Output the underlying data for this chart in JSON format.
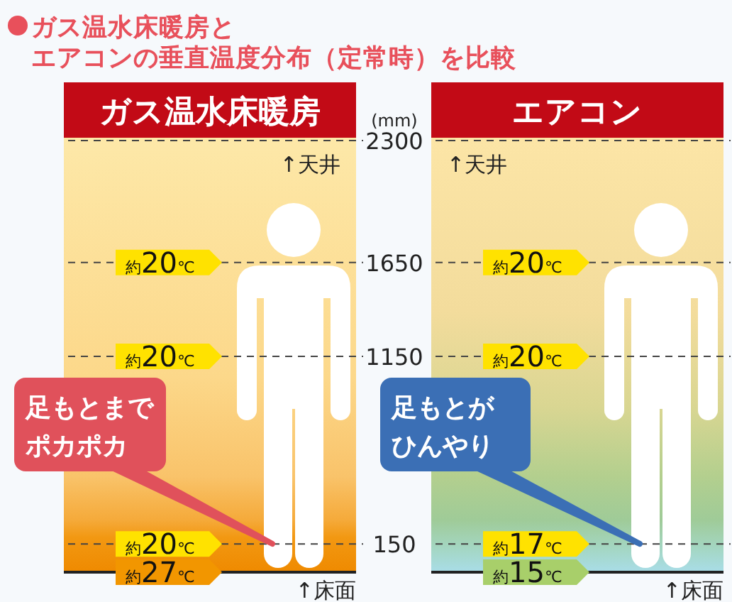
{
  "chart_data": [
    {
      "type": "scatter",
      "title": "ガス温水床暖房とエアコンの垂直温度分布（定常時）を比較",
      "subtitle": "ガス温水床暖房",
      "ylabel": "(mm)",
      "categories": [
        null
      ],
      "ylim": [
        0,
        2300
      ],
      "yticks": [
        150,
        1150,
        1650,
        2300
      ],
      "grid": "y",
      "series": [
        {
          "name": "約20℃",
          "color": "#ffe200",
          "values": [
            1650
          ]
        },
        {
          "name": "約20℃",
          "color": "#ffe200",
          "values": [
            1150
          ]
        },
        {
          "name": "約20℃",
          "color": "#ffe200",
          "values": [
            150
          ]
        },
        {
          "name": "約27℃",
          "color": "#f29600",
          "values": [
            0
          ]
        }
      ],
      "ref_lines": [
        {
          "axis": "y",
          "value": 0,
          "label": "↑床面",
          "line_style": "solid"
        }
      ],
      "annotations": [
        "↑天井",
        "足もとまでポカポカ"
      ]
    },
    {
      "type": "scatter",
      "subtitle": "エアコン",
      "categories": [
        null
      ],
      "ylim": [
        0,
        2300
      ],
      "yticks": [
        150,
        1150,
        1650,
        2300
      ],
      "grid": "y",
      "tick_labels": false,
      "series": [
        {
          "name": "約20℃",
          "color": "#ffe200",
          "values": [
            1650
          ]
        },
        {
          "name": "約20℃",
          "color": "#ffe200",
          "values": [
            1150
          ]
        },
        {
          "name": "約17℃",
          "color": "#ffe200",
          "values": [
            150
          ]
        },
        {
          "name": "約15℃",
          "color": "#a8cf6a",
          "values": [
            0
          ]
        }
      ],
      "ref_lines": [
        {
          "axis": "y",
          "value": 0,
          "label": "↑床面",
          "line_style": "solid"
        }
      ],
      "annotations": [
        "↑天井",
        "足もとがひんやり"
      ]
    }
  ]
}
